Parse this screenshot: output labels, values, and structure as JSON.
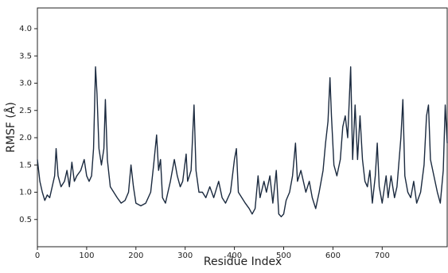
{
  "chart_data": {
    "type": "line",
    "x_label": "Residue Index",
    "y_label": "RMSF (Å)",
    "xlim": [
      0,
      832
    ],
    "ylim": [
      0,
      4.38
    ],
    "xticks": [
      0,
      100,
      200,
      300,
      400,
      500,
      600,
      700
    ],
    "yticks": [
      0.5,
      {
        "value": 1,
        "label": "1.0"
      },
      1.5,
      {
        "value": 2,
        "label": "2.0"
      },
      2.5,
      {
        "value": 3,
        "label": "3.0"
      },
      3.5,
      {
        "value": 4,
        "label": "4.0"
      }
    ],
    "grid": false,
    "series": [
      {
        "color": "#1b2a3f",
        "x": [
          0,
          5,
          10,
          15,
          20,
          25,
          30,
          35,
          38,
          42,
          48,
          55,
          60,
          65,
          70,
          75,
          80,
          88,
          95,
          100,
          105,
          110,
          114,
          118,
          121,
          125,
          130,
          135,
          138,
          142,
          148,
          155,
          162,
          170,
          178,
          185,
          190,
          195,
          200,
          210,
          220,
          230,
          236,
          242,
          246,
          250,
          254,
          260,
          265,
          270,
          278,
          284,
          290,
          295,
          302,
          305,
          312,
          318,
          322,
          328,
          335,
          342,
          350,
          358,
          368,
          375,
          382,
          392,
          400,
          404,
          408,
          415,
          422,
          430,
          436,
          442,
          448,
          452,
          460,
          465,
          472,
          478,
          485,
          490,
          495,
          500,
          505,
          512,
          518,
          522,
          524,
          528,
          535,
          540,
          545,
          552,
          558,
          565,
          572,
          580,
          585,
          590,
          594,
          597,
          602,
          608,
          615,
          620,
          625,
          630,
          636,
          640,
          645,
          650,
          655,
          660,
          665,
          670,
          675,
          680,
          686,
          690,
          694,
          700,
          708,
          712,
          718,
          725,
          730,
          738,
          742,
          746,
          752,
          758,
          764,
          770,
          778,
          785,
          790,
          794,
          798,
          805,
          812,
          818,
          824,
          828,
          832
        ],
        "values": [
          1.6,
          1.2,
          1.0,
          0.85,
          0.95,
          0.9,
          1.1,
          1.3,
          1.8,
          1.3,
          1.1,
          1.2,
          1.4,
          1.1,
          1.55,
          1.2,
          1.3,
          1.4,
          1.6,
          1.3,
          1.2,
          1.3,
          1.8,
          3.3,
          2.8,
          1.8,
          1.5,
          1.8,
          2.7,
          1.6,
          1.1,
          1.0,
          0.9,
          0.8,
          0.85,
          1.0,
          1.5,
          1.1,
          0.8,
          0.75,
          0.8,
          1.0,
          1.5,
          2.05,
          1.4,
          1.6,
          0.9,
          0.8,
          1.0,
          1.2,
          1.6,
          1.3,
          1.1,
          1.2,
          1.7,
          1.2,
          1.4,
          2.6,
          1.4,
          1.0,
          1.0,
          0.9,
          1.1,
          0.9,
          1.2,
          0.9,
          0.8,
          1.0,
          1.6,
          1.8,
          1.0,
          0.9,
          0.8,
          0.7,
          0.6,
          0.7,
          1.3,
          0.9,
          1.2,
          1.0,
          1.3,
          0.8,
          1.4,
          0.6,
          0.55,
          0.6,
          0.85,
          1.0,
          1.3,
          1.7,
          1.9,
          1.2,
          1.4,
          1.2,
          1.0,
          1.2,
          0.9,
          0.7,
          1.0,
          1.4,
          1.9,
          2.3,
          3.1,
          2.4,
          1.5,
          1.3,
          1.6,
          2.2,
          2.4,
          2.0,
          3.3,
          1.6,
          2.6,
          1.6,
          2.4,
          1.6,
          1.2,
          1.1,
          1.4,
          0.8,
          1.3,
          1.9,
          1.1,
          0.8,
          1.3,
          0.9,
          1.3,
          0.9,
          1.1,
          2.0,
          2.7,
          1.3,
          1.0,
          0.9,
          1.2,
          0.8,
          1.0,
          1.5,
          2.4,
          2.6,
          1.6,
          1.3,
          1.0,
          0.8,
          1.4,
          2.6,
          1.9
        ]
      }
    ]
  }
}
